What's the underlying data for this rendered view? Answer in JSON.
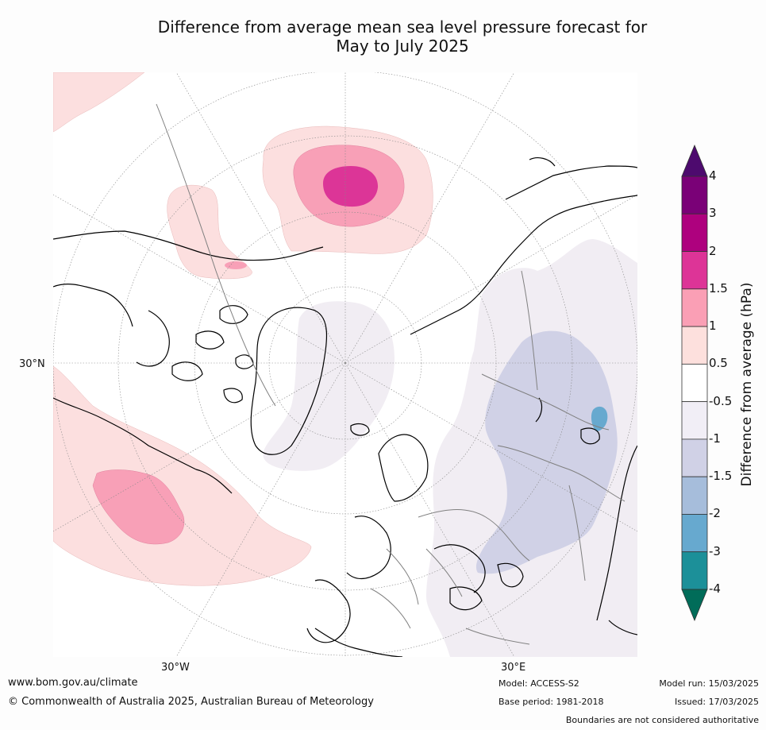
{
  "title": {
    "line1": "Difference from average mean sea level pressure forecast for",
    "line2": "May to July 2025"
  },
  "map": {
    "projection": "north-polar-stereographic",
    "lat_label": "30°N",
    "lon_labels": [
      "30°W",
      "30°E"
    ],
    "colors": {
      "land_outline": "#000000",
      "borders": "#808080",
      "graticule": "#888888",
      "anomaly_pos_0_5_1": "#fcdfdf",
      "anomaly_pos_1_1_5": "#f8a0b7",
      "anomaly_pos_1_5_2": "#dc3597",
      "anomaly_neg_0_5_1": "#f1edf3",
      "anomaly_neg_1_1_5": "#d0d1e6",
      "anomaly_neg_2_3": "#67a9cf"
    }
  },
  "colorbar": {
    "title": "Difference from average (hPa)",
    "tick_labels": [
      "4",
      "3",
      "2",
      "1.5",
      "1",
      "0.5",
      "-0.5",
      "-1",
      "-1.5",
      "-2",
      "-3",
      "-4"
    ],
    "bands": [
      {
        "from": 4,
        "to": 9,
        "color": "#4d0a6e"
      },
      {
        "from": 3,
        "to": 4,
        "color": "#7a0177"
      },
      {
        "from": 2,
        "to": 3,
        "color": "#ae017e"
      },
      {
        "from": 1.5,
        "to": 2,
        "color": "#dd3497"
      },
      {
        "from": 1,
        "to": 1.5,
        "color": "#fa9fb5"
      },
      {
        "from": 0.5,
        "to": 1,
        "color": "#fde0dd"
      },
      {
        "from": -0.5,
        "to": 0.5,
        "color": "#ffffff"
      },
      {
        "from": -1,
        "to": -0.5,
        "color": "#f1eef6"
      },
      {
        "from": -1.5,
        "to": -1,
        "color": "#d0d1e6"
      },
      {
        "from": -2,
        "to": -1.5,
        "color": "#a6bddb"
      },
      {
        "from": -3,
        "to": -2,
        "color": "#67a9cf"
      },
      {
        "from": -4,
        "to": -3,
        "color": "#1c9099"
      },
      {
        "from": -9,
        "to": -4,
        "color": "#016c59"
      }
    ]
  },
  "footer": {
    "url": "www.bom.gov.au/climate",
    "copyright": "© Commonwealth of Australia 2025, Australian Bureau of Meteorology",
    "model": "Model: ACCESS-S2",
    "base_period": "Base period: 1981-2018",
    "model_run": "Model run: 15/03/2025",
    "issued": "Issued: 17/03/2025",
    "disclaimer": "Boundaries are not considered authoritative"
  }
}
